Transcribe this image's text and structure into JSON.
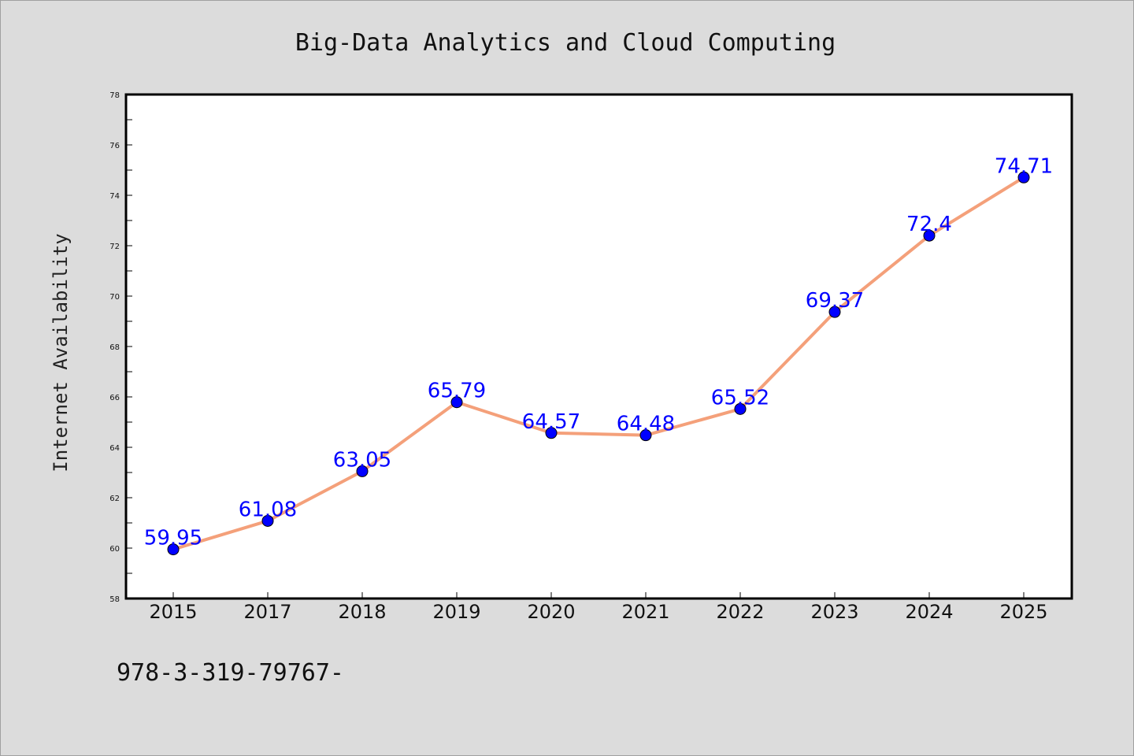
{
  "chart_data": {
    "type": "line",
    "title": "Big-Data Analytics and Cloud Computing",
    "xlabel": "",
    "ylabel": "Internet Availability",
    "categories": [
      "2015",
      "2017",
      "2018",
      "2019",
      "2020",
      "2021",
      "2022",
      "2023",
      "2024",
      "2025"
    ],
    "series": [
      {
        "values": [
          59.95,
          61.08,
          63.05,
          65.79,
          64.57,
          64.48,
          65.52,
          69.37,
          72.4,
          74.71
        ],
        "data_labels": [
          "59.95",
          "61.08",
          "63.05",
          "65.79",
          "64.57",
          "64.48",
          "65.52",
          "69.37",
          "72.4",
          "74.71"
        ],
        "line_color": "#f4a07a",
        "marker_color": "#0000ff",
        "label_color": "#0000ff"
      }
    ],
    "ylim": [
      58,
      78
    ],
    "yticks": [
      "58",
      "60",
      "62",
      "64",
      "66",
      "68",
      "70",
      "72",
      "74",
      "76",
      "78"
    ],
    "grid": false,
    "legend": "none"
  },
  "footnote": "978-3-319-79767-",
  "colors": {
    "background": "#dcdcdc",
    "plot_background": "#ffffff",
    "axes": "#000000"
  }
}
